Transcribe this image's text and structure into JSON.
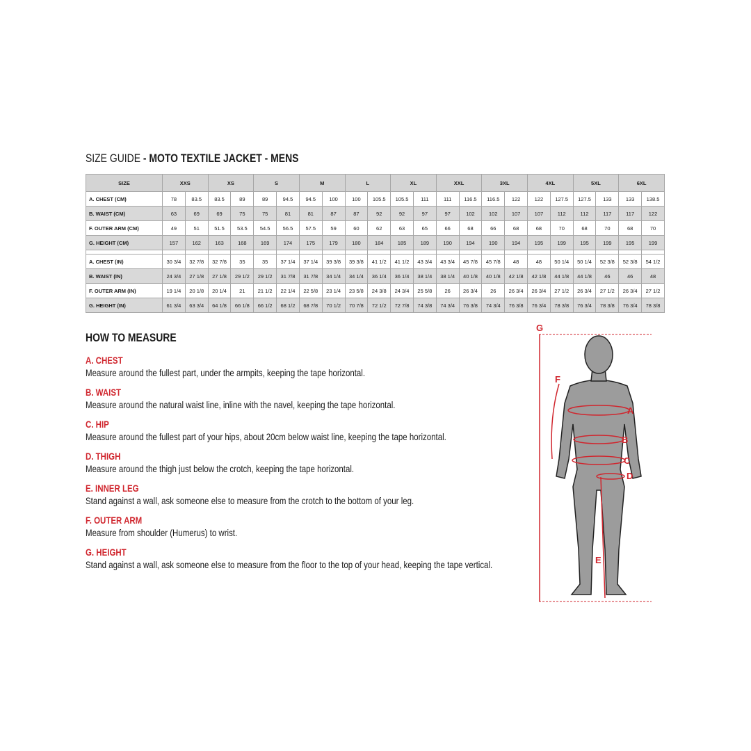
{
  "title": {
    "prefix": "SIZE GUIDE",
    "main": "- MOTO TEXTILE JACKET - MENS"
  },
  "table": {
    "header": [
      "SIZE",
      "XXS",
      "XS",
      "S",
      "M",
      "L",
      "XL",
      "XXL",
      "3XL",
      "4XL",
      "5XL",
      "6XL"
    ],
    "metric": [
      {
        "label": "A. CHEST (CM)",
        "cells": [
          "78",
          "83.5",
          "83.5",
          "89",
          "89",
          "94.5",
          "94.5",
          "100",
          "100",
          "105.5",
          "105.5",
          "111",
          "111",
          "116.5",
          "116.5",
          "122",
          "122",
          "127.5",
          "127.5",
          "133",
          "133",
          "138.5"
        ]
      },
      {
        "label": "B. WAIST (CM)",
        "cells": [
          "63",
          "69",
          "69",
          "75",
          "75",
          "81",
          "81",
          "87",
          "87",
          "92",
          "92",
          "97",
          "97",
          "102",
          "102",
          "107",
          "107",
          "112",
          "112",
          "117",
          "117",
          "122"
        ]
      },
      {
        "label": "F. OUTER ARM (CM)",
        "cells": [
          "49",
          "51",
          "51.5",
          "53.5",
          "54.5",
          "56.5",
          "57.5",
          "59",
          "60",
          "62",
          "63",
          "65",
          "66",
          "68",
          "66",
          "68",
          "68",
          "70",
          "68",
          "70",
          "68",
          "70"
        ]
      },
      {
        "label": "G. HEIGHT (CM)",
        "cells": [
          "157",
          "162",
          "163",
          "168",
          "169",
          "174",
          "175",
          "179",
          "180",
          "184",
          "185",
          "189",
          "190",
          "194",
          "190",
          "194",
          "195",
          "199",
          "195",
          "199",
          "195",
          "199"
        ]
      }
    ],
    "imperial": [
      {
        "label": "A. CHEST (IN)",
        "cells": [
          "30 3/4",
          "32 7/8",
          "32 7/8",
          "35",
          "35",
          "37 1/4",
          "37 1/4",
          "39 3/8",
          "39 3/8",
          "41 1/2",
          "41 1/2",
          "43 3/4",
          "43 3/4",
          "45 7/8",
          "45 7/8",
          "48",
          "48",
          "50 1/4",
          "50 1/4",
          "52 3/8",
          "52 3/8",
          "54 1/2"
        ]
      },
      {
        "label": "B. WAIST (IN)",
        "cells": [
          "24 3/4",
          "27 1/8",
          "27 1/8",
          "29 1/2",
          "29 1/2",
          "31 7/8",
          "31 7/8",
          "34 1/4",
          "34 1/4",
          "36 1/4",
          "36 1/4",
          "38 1/4",
          "38 1/4",
          "40 1/8",
          "40 1/8",
          "42 1/8",
          "42 1/8",
          "44 1/8",
          "44 1/8",
          "46",
          "46",
          "48"
        ]
      },
      {
        "label": "F. OUTER ARM (IN)",
        "cells": [
          "19 1/4",
          "20 1/8",
          "20 1/4",
          "21",
          "21 1/2",
          "22 1/4",
          "22 5/8",
          "23 1/4",
          "23 5/8",
          "24 3/8",
          "24 3/4",
          "25 5/8",
          "26",
          "26 3/4",
          "26",
          "26 3/4",
          "26 3/4",
          "27 1/2",
          "26 3/4",
          "27 1/2",
          "26 3/4",
          "27 1/2"
        ]
      },
      {
        "label": "G. HEIGHT (IN)",
        "cells": [
          "61 3/4",
          "63 3/4",
          "64 1/8",
          "66 1/8",
          "66 1/2",
          "68 1/2",
          "68 7/8",
          "70 1/2",
          "70 7/8",
          "72 1/2",
          "72 7/8",
          "74 3/8",
          "74 3/4",
          "76 3/8",
          "74 3/4",
          "76 3/8",
          "76 3/4",
          "78 3/8",
          "76 3/4",
          "78 3/8",
          "76 3/4",
          "78 3/8"
        ]
      }
    ]
  },
  "how_to_measure": {
    "heading": "HOW TO MEASURE",
    "items": [
      {
        "title": "A. CHEST",
        "text": "Measure around the fullest part, under the armpits, keeping the tape horizontal."
      },
      {
        "title": "B. WAIST",
        "text": "Measure around the natural waist line, inline with the navel, keeping the tape horizontal."
      },
      {
        "title": "C. HIP",
        "text": "Measure around the fullest part of your hips, about 20cm below waist line, keeping the tape horizontal."
      },
      {
        "title": "D. THIGH",
        "text": "Measure around the thigh just below the crotch, keeping the tape horizontal."
      },
      {
        "title": "E. INNER LEG",
        "text": "Stand against a wall, ask someone else to measure from the crotch to the bottom of your leg."
      },
      {
        "title": "F. OUTER ARM",
        "text": "Measure from shoulder (Humerus) to wrist."
      },
      {
        "title": "G. HEIGHT",
        "text": "Stand against a wall, ask someone else to measure from the floor to the top of your head, keeping the tape vertical."
      }
    ]
  },
  "figure": {
    "labels": [
      "G",
      "F",
      "A",
      "B",
      "C",
      "D",
      "E"
    ]
  }
}
